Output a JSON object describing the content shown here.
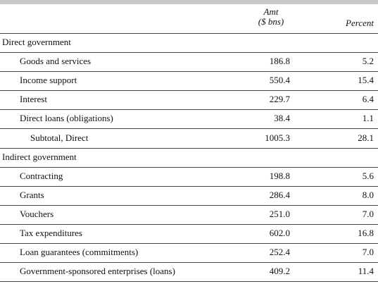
{
  "table": {
    "header": {
      "amt": [
        "Amt",
        "($ bns)"
      ],
      "percent": "Percent"
    },
    "sections": [
      {
        "title": "Direct government",
        "rows": [
          {
            "label": "Goods and services",
            "amt": "186.8",
            "percent": "5.2"
          },
          {
            "label": "Income support",
            "amt": "550.4",
            "percent": "15.4"
          },
          {
            "label": "Interest",
            "amt": "229.7",
            "percent": "6.4"
          },
          {
            "label": "Direct loans (obligations)",
            "amt": "38.4",
            "percent": "1.1"
          }
        ],
        "subtotal": {
          "label": "Subtotal, Direct",
          "amt": "1005.3",
          "percent": "28.1"
        }
      },
      {
        "title": "Indirect government",
        "rows": [
          {
            "label": "Contracting",
            "amt": "198.8",
            "percent": "5.6"
          },
          {
            "label": "Grants",
            "amt": "286.4",
            "percent": "8.0"
          },
          {
            "label": "Vouchers",
            "amt": "251.0",
            "percent": "7.0"
          },
          {
            "label": "Tax expenditures",
            "amt": "602.0",
            "percent": "16.8"
          },
          {
            "label": "Loan guarantees (commitments)",
            "amt": "252.4",
            "percent": "7.0"
          },
          {
            "label": "Government-sponsored enterprises (loans)",
            "amt": "409.2",
            "percent": "11.4"
          }
        ]
      }
    ]
  }
}
